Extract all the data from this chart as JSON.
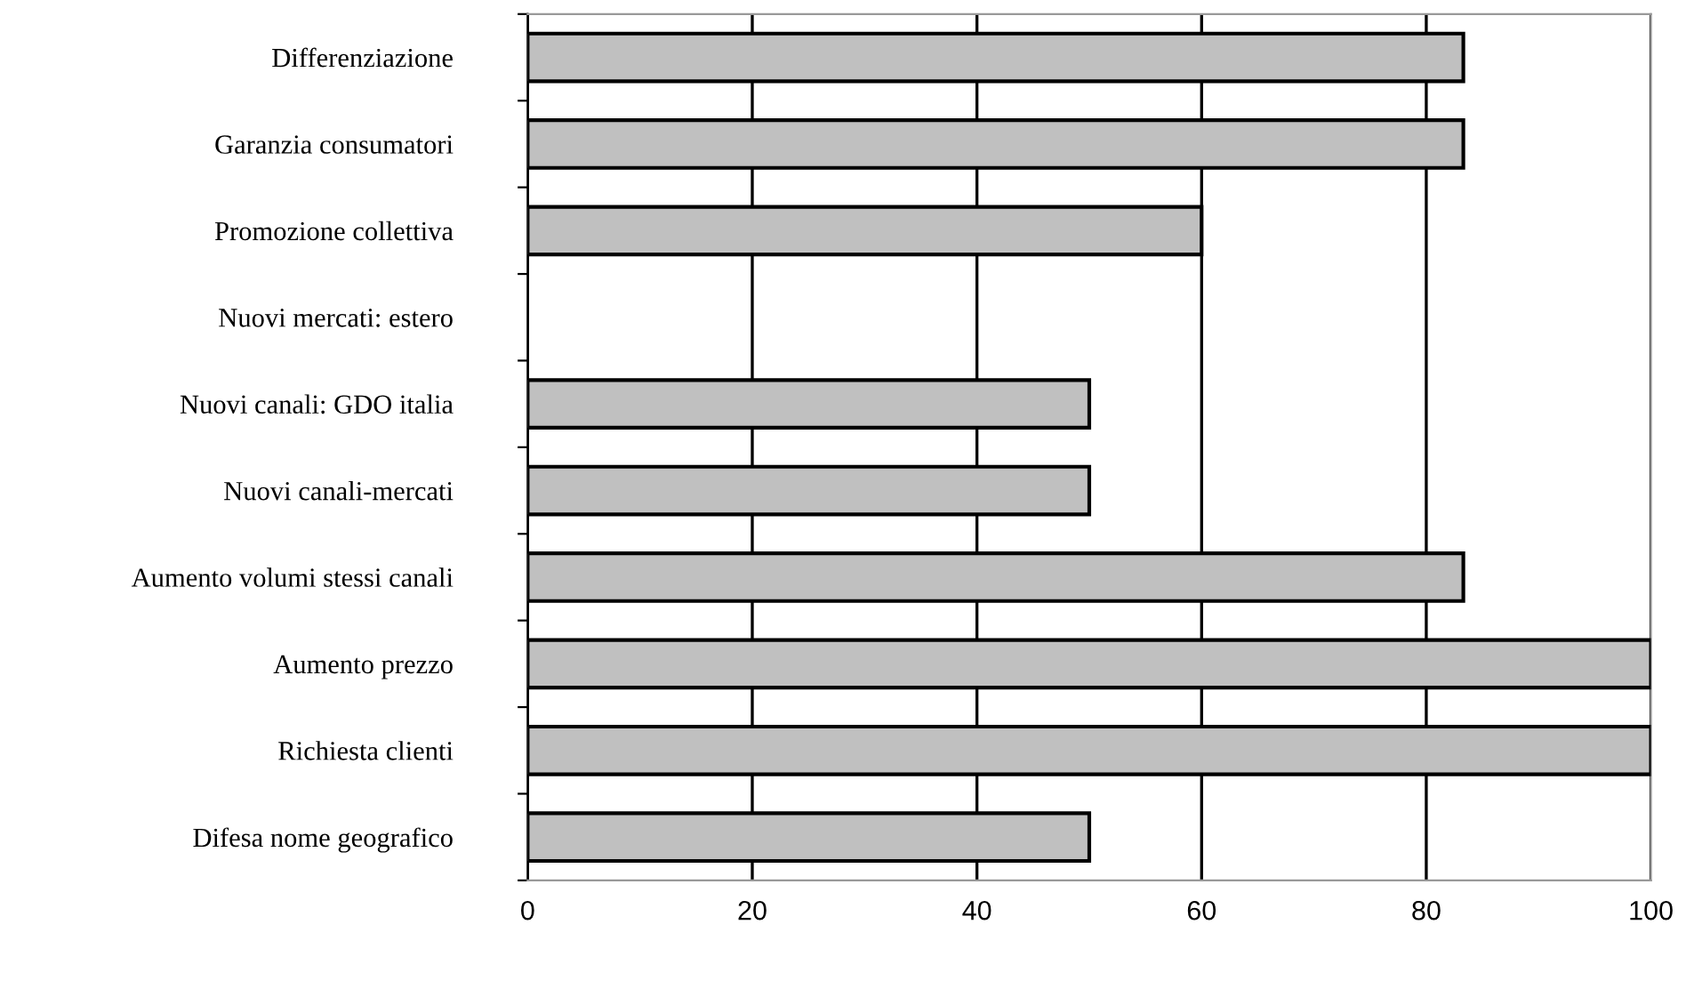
{
  "chart_data": {
    "type": "bar",
    "orientation": "horizontal",
    "categories": [
      "Differenziazione",
      "Garanzia consumatori",
      "Promozione collettiva",
      "Nuovi mercati: estero",
      "Nuovi canali: GDO italia",
      "Nuovi canali-mercati",
      "Aumento volumi stessi canali",
      "Aumento prezzo",
      "Richiesta clienti",
      "Difesa nome geografico"
    ],
    "values": [
      83.3,
      83.3,
      60,
      null,
      50,
      50,
      83.3,
      100,
      100,
      50
    ],
    "color": "#c0c0c0",
    "xlim": [
      0,
      100
    ],
    "xticks": [
      0,
      20,
      40,
      60,
      80,
      100
    ],
    "grid": "x"
  }
}
